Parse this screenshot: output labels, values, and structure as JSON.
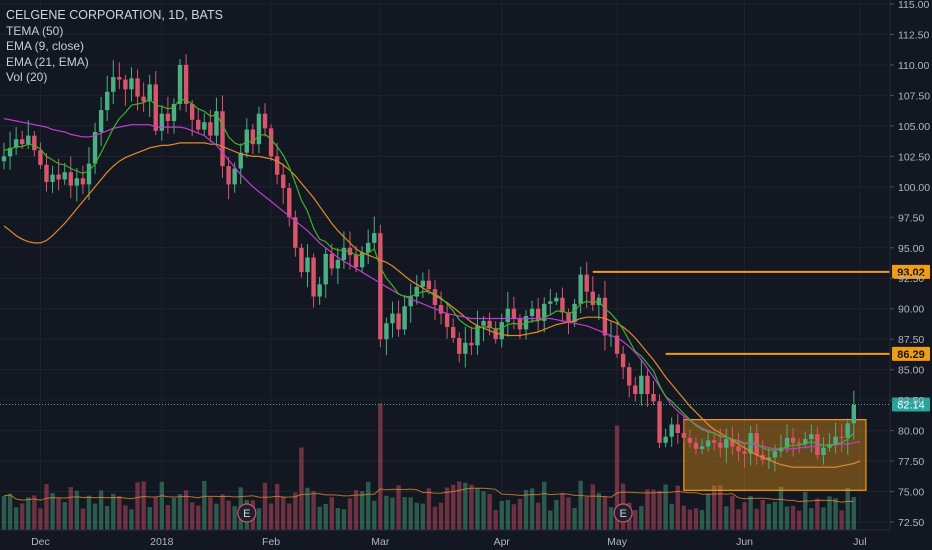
{
  "legend": {
    "title": "CELGENE CORPORATION, 1D, BATS",
    "indicators": [
      "TEMA (50)",
      "EMA (9, close)",
      "EMA (21, EMA)",
      "Vol (20)"
    ]
  },
  "colors": {
    "background": "#131722",
    "grid": "#1e2330",
    "up": "#4caf84",
    "down": "#d9556a",
    "tema": "#c23bd6",
    "ema9": "#43b02a",
    "ema21": "#e08b2b",
    "level": "#f39c12",
    "text": "#b2b5be"
  },
  "chart_data": {
    "type": "candlestick",
    "title": "CELGENE CORPORATION, 1D, BATS",
    "ylim": [
      72.5,
      115.0
    ],
    "y_ticks": [
      "115.00",
      "112.50",
      "110.00",
      "107.50",
      "105.00",
      "102.50",
      "100.00",
      "97.50",
      "95.00",
      "92.50",
      "90.00",
      "87.50",
      "85.00",
      "82.50",
      "80.00",
      "77.50",
      "75.00",
      "72.50"
    ],
    "x_ticks": [
      "Dec",
      "2018",
      "Feb",
      "Mar",
      "Apr",
      "May",
      "Jun",
      "Jul"
    ],
    "x_tick_index": [
      6,
      26,
      44,
      62,
      82,
      101,
      122,
      141
    ],
    "series_close": [
      102.5,
      103.2,
      103.9,
      103.5,
      104.2,
      103.0,
      101.8,
      100.4,
      101.0,
      100.6,
      101.2,
      100.1,
      100.7,
      100.2,
      101.9,
      104.5,
      106.3,
      107.8,
      109.0,
      108.8,
      108.0,
      108.9,
      107.4,
      107.0,
      108.4,
      104.6,
      106.0,
      105.4,
      106.8,
      110.0,
      106.8,
      105.5,
      104.7,
      105.3,
      104.2,
      106.2,
      101.7,
      100.2,
      101.5,
      102.8,
      104.7,
      103.5,
      106.0,
      104.8,
      102.5,
      101.0,
      99.9,
      97.5,
      95.0,
      93.0,
      94.2,
      91.0,
      92.0,
      94.5,
      93.3,
      94.0,
      95.0,
      94.4,
      93.4,
      94.6,
      95.4,
      96.2,
      87.5,
      88.8,
      89.6,
      88.3,
      90.2,
      91.0,
      91.8,
      92.3,
      91.6,
      90.3,
      89.6,
      88.5,
      87.6,
      86.3,
      87.2,
      87.0,
      88.6,
      89.0,
      88.4,
      87.5,
      88.9,
      90.0,
      89.2,
      88.3,
      89.4,
      90.0,
      89.0,
      90.4,
      90.6,
      90.9,
      89.7,
      88.9,
      90.4,
      92.8,
      91.4,
      90.3,
      90.9,
      87.8,
      87.8,
      86.3,
      85.2,
      83.7,
      83.0,
      84.5,
      83.0,
      82.4,
      79.0,
      79.5,
      80.5,
      79.8,
      79.4,
      79.0,
      78.5,
      78.7,
      79.2,
      79.0,
      78.6,
      79.3,
      78.7,
      78.3,
      78.1,
      79.8,
      78.0,
      77.6,
      77.8,
      78.3,
      78.6,
      79.4,
      79.0,
      78.9,
      79.3,
      79.7,
      78.0,
      78.6,
      78.9,
      79.5,
      79.4,
      80.6,
      82.1
    ],
    "tema_50": [
      105.6,
      105.5,
      105.4,
      105.3,
      105.2,
      105.1,
      105.0,
      104.9,
      104.7,
      104.6,
      104.5,
      104.3,
      104.2,
      104.1,
      104.1,
      104.2,
      104.4,
      104.6,
      104.8,
      104.9,
      105.0,
      105.1,
      105.1,
      105.1,
      105.1,
      104.9,
      104.9,
      104.9,
      104.9,
      104.9,
      104.8,
      104.6,
      104.4,
      104.2,
      103.8,
      103.4,
      102.8,
      102.2,
      101.6,
      101.0,
      100.5,
      100.0,
      99.6,
      99.2,
      98.8,
      98.4,
      98.0,
      97.6,
      97.2,
      96.8,
      96.4,
      95.9,
      95.4,
      95.0,
      94.6,
      94.2,
      93.9,
      93.6,
      93.3,
      93.0,
      92.7,
      92.4,
      92.1,
      91.8,
      91.5,
      91.2,
      91.0,
      90.8,
      90.6,
      90.4,
      90.2,
      90.0,
      89.8,
      89.6,
      89.5,
      89.4,
      89.3,
      89.2,
      89.2,
      89.2,
      89.2,
      89.2,
      89.2,
      89.2,
      89.2,
      89.2,
      89.2,
      89.2,
      89.2,
      89.2,
      89.2,
      89.1,
      89.0,
      88.9,
      88.8,
      88.7,
      88.6,
      88.4,
      88.2,
      88.0,
      87.8,
      87.6,
      87.3,
      86.9,
      86.4,
      85.8,
      85.1,
      84.4,
      83.6,
      82.8,
      82.1,
      81.6,
      81.2,
      80.8,
      80.5,
      80.2,
      80.0,
      79.8,
      79.6,
      79.4,
      79.3,
      79.2,
      79.0,
      78.9,
      78.8,
      78.7,
      78.6,
      78.5,
      78.5,
      78.5,
      78.5,
      78.6,
      78.6,
      78.7,
      78.7,
      78.8,
      78.8,
      78.8,
      78.9,
      78.9,
      79.0,
      79.1
    ],
    "ema_9": [
      103.0,
      103.1,
      103.3,
      103.3,
      103.5,
      103.4,
      103.1,
      102.5,
      102.2,
      101.9,
      101.8,
      101.5,
      101.3,
      101.1,
      101.3,
      101.9,
      102.8,
      103.8,
      104.8,
      105.6,
      106.1,
      106.7,
      106.8,
      106.9,
      107.2,
      106.7,
      106.6,
      106.4,
      106.5,
      107.2,
      107.1,
      106.8,
      106.4,
      106.2,
      105.8,
      105.9,
      105.1,
      104.1,
      103.6,
      103.4,
      103.7,
      103.7,
      104.2,
      104.3,
      103.9,
      103.3,
      102.6,
      101.6,
      100.3,
      98.9,
      98.0,
      96.6,
      95.7,
      95.5,
      95.0,
      94.8,
      94.8,
      94.7,
      94.4,
      94.4,
      94.6,
      94.9,
      93.4,
      92.5,
      91.9,
      91.2,
      91.0,
      91.0,
      91.2,
      91.4,
      91.4,
      91.2,
      90.9,
      90.4,
      89.8,
      89.1,
      88.7,
      88.4,
      88.4,
      88.5,
      88.5,
      88.3,
      88.4,
      88.7,
      88.8,
      88.7,
      88.8,
      89.0,
      89.0,
      89.3,
      89.5,
      89.8,
      89.8,
      89.6,
      89.8,
      90.4,
      90.6,
      90.5,
      90.6,
      90.0,
      89.6,
      89.0,
      88.3,
      87.4,
      86.5,
      86.1,
      85.5,
      84.9,
      83.7,
      82.8,
      82.4,
      81.9,
      81.4,
      80.9,
      80.4,
      80.1,
      79.9,
      79.8,
      79.5,
      79.5,
      79.3,
      79.1,
      78.9,
      79.1,
      78.9,
      78.6,
      78.4,
      78.4,
      78.5,
      78.7,
      78.8,
      78.8,
      78.9,
      79.1,
      78.9,
      78.8,
      78.8,
      78.9,
      79.0,
      79.3,
      79.8
    ],
    "ema_21": [
      96.8,
      96.4,
      96.0,
      95.7,
      95.5,
      95.4,
      95.4,
      95.6,
      96.0,
      96.5,
      97.0,
      97.6,
      98.2,
      98.8,
      99.4,
      100.0,
      100.6,
      101.2,
      101.7,
      102.1,
      102.4,
      102.6,
      102.8,
      103.0,
      103.2,
      103.3,
      103.4,
      103.4,
      103.5,
      103.6,
      103.6,
      103.6,
      103.6,
      103.6,
      103.5,
      103.5,
      103.3,
      103.1,
      102.9,
      102.7,
      102.6,
      102.5,
      102.5,
      102.4,
      102.3,
      102.1,
      101.8,
      101.4,
      100.9,
      100.3,
      99.7,
      99.1,
      98.4,
      97.7,
      97.0,
      96.4,
      95.9,
      95.4,
      94.9,
      94.6,
      94.4,
      94.2,
      94.0,
      93.8,
      93.5,
      93.1,
      92.7,
      92.3,
      92.0,
      91.7,
      91.4,
      91.1,
      90.8,
      90.5,
      90.1,
      89.7,
      89.3,
      88.9,
      88.6,
      88.4,
      88.2,
      88.0,
      87.9,
      87.8,
      87.8,
      87.8,
      87.9,
      88.0,
      88.1,
      88.3,
      88.5,
      88.7,
      88.8,
      88.9,
      89.0,
      89.2,
      89.3,
      89.3,
      89.3,
      89.2,
      89.0,
      88.8,
      88.5,
      88.1,
      87.6,
      87.0,
      86.4,
      85.8,
      85.1,
      84.4,
      83.8,
      83.2,
      82.6,
      82.0,
      81.5,
      81.0,
      80.5,
      80.1,
      79.8,
      79.5,
      79.2,
      78.9,
      78.6,
      78.3,
      78.0,
      77.8,
      77.6,
      77.4,
      77.2,
      77.1,
      77.0,
      77.0,
      77.0,
      77.0,
      77.0,
      77.0,
      77.0,
      77.0,
      77.1,
      77.2,
      77.3,
      77.5
    ],
    "levels": [
      {
        "value": 93.02,
        "label": "93.02",
        "from_index": 97
      },
      {
        "value": 86.29,
        "label": "86.29",
        "from_index": 109
      }
    ],
    "last_price": {
      "value": 82.14,
      "label": "82.14"
    },
    "range_box": {
      "from_index": 112,
      "to_index": 142,
      "low": 75.1,
      "high": 80.9
    },
    "earnings_markers": [
      {
        "index": 40,
        "label": "E"
      },
      {
        "index": 102,
        "label": "E"
      }
    ]
  }
}
